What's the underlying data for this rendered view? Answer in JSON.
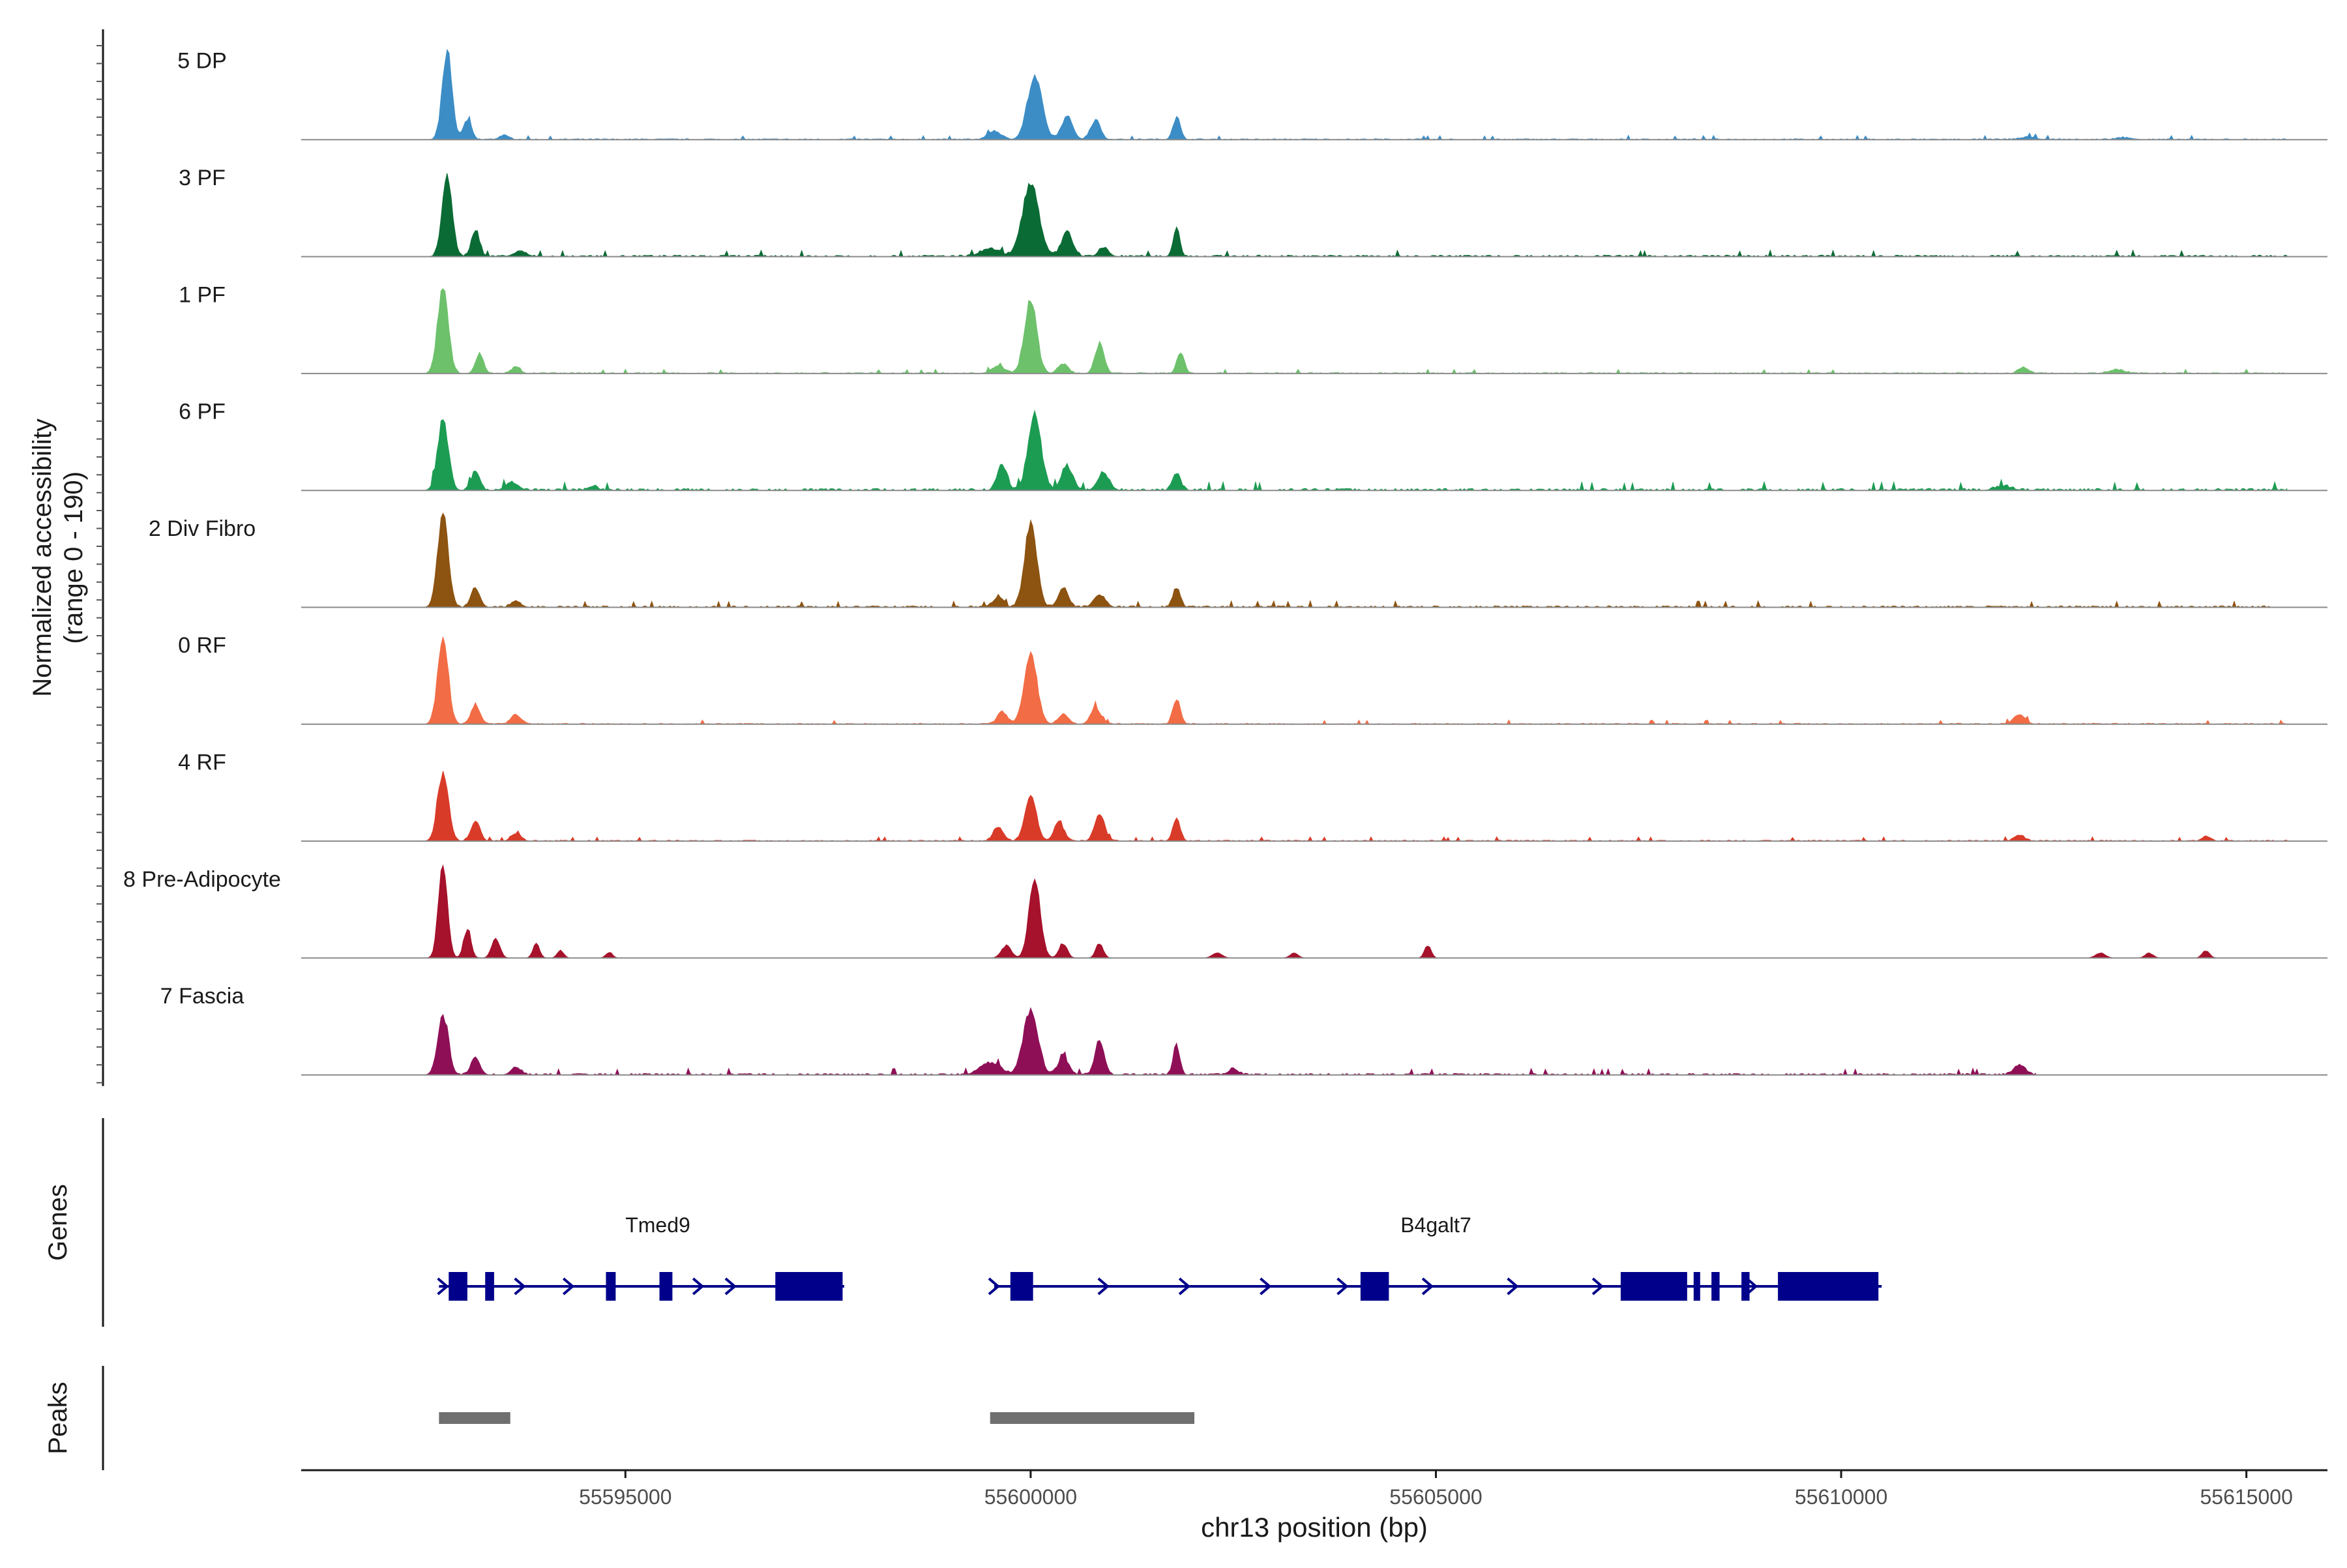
{
  "chart_data": {
    "type": "area",
    "title": "",
    "region": "chr13",
    "xlabel": "chr13 position (bp)",
    "ylabel": "Normalized accessibility",
    "ylabel_range": "(range 0 - 190)",
    "ylim": [
      0,
      190
    ],
    "xlim": [
      55591000,
      55616000
    ],
    "xticks": [
      55595000,
      55600000,
      55605000,
      55610000,
      55615000
    ],
    "xtick_labels": [
      "55595000",
      "55600000",
      "55605000",
      "55610000",
      "55615000"
    ],
    "series": [
      {
        "name": "5 DP",
        "color": "#3C8DC6",
        "noise": 2,
        "start": 55591000,
        "end": 55615500,
        "peaks": [
          [
            55592800,
            175,
            60
          ],
          [
            55593050,
            40,
            50
          ],
          [
            55593500,
            8,
            60
          ],
          [
            55599550,
            18,
            80
          ],
          [
            55600050,
            125,
            90
          ],
          [
            55600450,
            45,
            70
          ],
          [
            55600800,
            40,
            60
          ],
          [
            55601800,
            45,
            45
          ],
          [
            55612300,
            5,
            100
          ],
          [
            55613500,
            4,
            100
          ]
        ]
      },
      {
        "name": "3 PF",
        "color": "#0B6B35",
        "noise": 3,
        "start": 55591000,
        "end": 55615500,
        "peaks": [
          [
            55592800,
            165,
            60
          ],
          [
            55593150,
            55,
            50
          ],
          [
            55593700,
            10,
            80
          ],
          [
            55599500,
            15,
            120
          ],
          [
            55600000,
            150,
            100
          ],
          [
            55600450,
            50,
            70
          ],
          [
            55600900,
            18,
            60
          ],
          [
            55601800,
            60,
            40
          ]
        ]
      },
      {
        "name": "1 PF",
        "color": "#6DC16B",
        "noise": 2,
        "start": 55591000,
        "end": 55615500,
        "peaks": [
          [
            55592750,
            175,
            65
          ],
          [
            55593200,
            40,
            50
          ],
          [
            55593650,
            15,
            50
          ],
          [
            55599600,
            15,
            80
          ],
          [
            55600000,
            150,
            75
          ],
          [
            55600400,
            20,
            60
          ],
          [
            55600850,
            60,
            55
          ],
          [
            55601850,
            45,
            45
          ],
          [
            55612250,
            12,
            60
          ],
          [
            55613400,
            7,
            100
          ]
        ]
      },
      {
        "name": "6 PF",
        "color": "#1C9C53",
        "noise": 4,
        "start": 55591000,
        "end": 55615500,
        "peaks": [
          [
            55592750,
            145,
            65
          ],
          [
            55593150,
            40,
            50
          ],
          [
            55593600,
            15,
            80
          ],
          [
            55594600,
            8,
            60
          ],
          [
            55599650,
            50,
            60
          ],
          [
            55600050,
            155,
            80
          ],
          [
            55600450,
            50,
            70
          ],
          [
            55600900,
            35,
            70
          ],
          [
            55601800,
            35,
            50
          ],
          [
            55612000,
            8,
            100
          ]
        ]
      },
      {
        "name": "2 Div Fibro",
        "color": "#8D5311",
        "noise": 3,
        "start": 55591000,
        "end": 55615300,
        "peaks": [
          [
            55592750,
            190,
            65
          ],
          [
            55593150,
            40,
            55
          ],
          [
            55593650,
            12,
            60
          ],
          [
            55599600,
            22,
            60
          ],
          [
            55600000,
            170,
            75
          ],
          [
            55600400,
            40,
            60
          ],
          [
            55600850,
            25,
            70
          ],
          [
            55601800,
            40,
            45
          ]
        ]
      },
      {
        "name": "0 RF",
        "color": "#F26C45",
        "noise": 2,
        "start": 55591000,
        "end": 55615500,
        "peaks": [
          [
            55592750,
            170,
            65
          ],
          [
            55593150,
            40,
            55
          ],
          [
            55593650,
            20,
            60
          ],
          [
            55599650,
            25,
            60
          ],
          [
            55600000,
            140,
            80
          ],
          [
            55600400,
            20,
            60
          ],
          [
            55600800,
            35,
            60
          ],
          [
            55601800,
            50,
            45
          ],
          [
            55612200,
            20,
            70
          ]
        ]
      },
      {
        "name": "4 RF",
        "color": "#D93B29",
        "noise": 2,
        "start": 55591000,
        "end": 55615500,
        "peaks": [
          [
            55592750,
            140,
            65
          ],
          [
            55593150,
            40,
            55
          ],
          [
            55593650,
            15,
            60
          ],
          [
            55599600,
            30,
            60
          ],
          [
            55600000,
            95,
            70
          ],
          [
            55600350,
            40,
            60
          ],
          [
            55600850,
            55,
            60
          ],
          [
            55601800,
            45,
            45
          ],
          [
            55612200,
            12,
            60
          ],
          [
            55614500,
            10,
            50
          ]
        ]
      },
      {
        "name": "8 Pre-Adipocyte",
        "color": "#A6112B",
        "noise": 0,
        "start": 55591000,
        "end": 55615500,
        "peaks": [
          [
            55592750,
            190,
            55
          ],
          [
            55593050,
            60,
            45
          ],
          [
            55593400,
            40,
            50
          ],
          [
            55593900,
            30,
            40
          ],
          [
            55594200,
            15,
            40
          ],
          [
            55594800,
            12,
            40
          ],
          [
            55599700,
            25,
            60
          ],
          [
            55600050,
            155,
            70
          ],
          [
            55600400,
            30,
            50
          ],
          [
            55600850,
            30,
            45
          ],
          [
            55602300,
            10,
            60
          ],
          [
            55603250,
            10,
            50
          ],
          [
            55604900,
            25,
            40
          ],
          [
            55613200,
            10,
            60
          ],
          [
            55613800,
            10,
            50
          ],
          [
            55614500,
            15,
            45
          ]
        ]
      },
      {
        "name": "7 Fascia",
        "color": "#8F0F57",
        "noise": 3,
        "start": 55591000,
        "end": 55612400,
        "peaks": [
          [
            55592750,
            120,
            65
          ],
          [
            55593150,
            35,
            55
          ],
          [
            55593650,
            15,
            60
          ],
          [
            55599500,
            25,
            120
          ],
          [
            55600000,
            130,
            90
          ],
          [
            55600400,
            40,
            60
          ],
          [
            55600850,
            70,
            55
          ],
          [
            55601800,
            60,
            40
          ],
          [
            55602500,
            12,
            60
          ],
          [
            55612200,
            20,
            70
          ]
        ]
      }
    ],
    "genes": [
      {
        "name": "Tmed9",
        "strand": "+",
        "start": 55592700,
        "end": 55597700,
        "label_pos": 55595400,
        "exons": [
          [
            55592820,
            55593050
          ],
          [
            55593270,
            55593380
          ],
          [
            55594760,
            55594880
          ],
          [
            55595420,
            55595580
          ],
          [
            55596850,
            55597680
          ]
        ],
        "arrows": [
          55592750,
          55593700,
          55594300,
          55595900,
          55596300
        ]
      },
      {
        "name": "B4galt7",
        "strand": "+",
        "start": 55599550,
        "end": 55610500,
        "label_pos": 55605000,
        "exons": [
          [
            55599750,
            55600030
          ],
          [
            55604070,
            55604420
          ],
          [
            55607280,
            55608100
          ],
          [
            55608180,
            55608230
          ],
          [
            55608400,
            55608500
          ],
          [
            55608770,
            55608870
          ],
          [
            55609220,
            55610460
          ]
        ],
        "arrows": [
          55599550,
          55600900,
          55601900,
          55602900,
          55603850,
          55604900,
          55605950,
          55607000,
          55608900
        ]
      }
    ],
    "peaks_track": [
      [
        55592700,
        55593580
      ],
      [
        55599500,
        55602020
      ]
    ],
    "panel_labels": {
      "genes": "Genes",
      "peaks": "Peaks"
    },
    "gene_color": "#00008B",
    "peak_color": "#6F6F6F"
  }
}
